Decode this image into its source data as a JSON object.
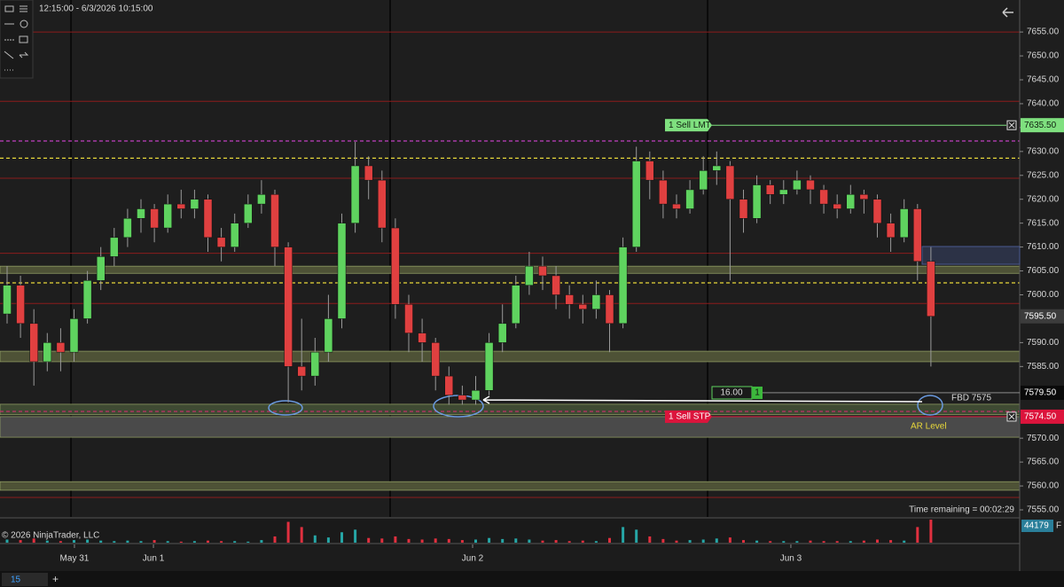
{
  "header": {
    "range": "12:15:00 - 6/3/2026 10:15:00"
  },
  "chart_data": {
    "type": "candlestick",
    "xlim": [
      -0.53,
      75.63
    ],
    "ylim": [
      7553.7,
      7661.7
    ],
    "xticks": [
      {
        "value": 5.03,
        "label": "May 31"
      },
      {
        "value": 10.93,
        "label": "Jun 1"
      },
      {
        "value": 34.77,
        "label": "Jun 2"
      },
      {
        "value": 58.54,
        "label": "Jun 3"
      }
    ],
    "session_breaks": [
      4.77,
      28.61,
      52.32
    ],
    "yticks": [
      {
        "value": 7655,
        "label": "7655.00"
      },
      {
        "value": 7650,
        "label": "7650.00"
      },
      {
        "value": 7645,
        "label": "7645.00"
      },
      {
        "value": 7640,
        "label": "7640.00"
      },
      {
        "value": 7635,
        "label": "7635.00"
      },
      {
        "value": 7630,
        "label": "7630.00"
      },
      {
        "value": 7625,
        "label": "7625.00"
      },
      {
        "value": 7620,
        "label": "7620.00"
      },
      {
        "value": 7615,
        "label": "7615.00"
      },
      {
        "value": 7610,
        "label": "7610.00"
      },
      {
        "value": 7605,
        "label": "7605.00"
      },
      {
        "value": 7600,
        "label": "7600.00"
      },
      {
        "value": 7590,
        "label": "7590.00"
      },
      {
        "value": 7585,
        "label": "7585.00"
      },
      {
        "value": 7570,
        "label": "7570.00"
      },
      {
        "value": 7565,
        "label": "7565.00"
      },
      {
        "value": 7560,
        "label": "7560.00"
      },
      {
        "value": 7555,
        "label": "7555.00"
      }
    ],
    "up_color": "#5fd35f",
    "down_color": "#e04040",
    "wick_color": "#9a9a9a",
    "candles": [
      [
        7596,
        7606,
        7594,
        7602
      ],
      [
        7602,
        7604,
        7591,
        7594
      ],
      [
        7594,
        7597,
        7581,
        7586
      ],
      [
        7586,
        7592,
        7584,
        7590
      ],
      [
        7590,
        7593,
        7584,
        7588
      ],
      [
        7588,
        7597,
        7586,
        7595
      ],
      [
        7595,
        7605,
        7594,
        7603
      ],
      [
        7603,
        7610,
        7601,
        7608
      ],
      [
        7608,
        7614,
        7606,
        7612
      ],
      [
        7612,
        7618,
        7610,
        7616
      ],
      [
        7616,
        7620,
        7613,
        7618
      ],
      [
        7618,
        7619,
        7611,
        7614
      ],
      [
        7614,
        7621,
        7613,
        7619
      ],
      [
        7619,
        7622,
        7616,
        7618
      ],
      [
        7618,
        7622,
        7616,
        7620
      ],
      [
        7620,
        7621,
        7609,
        7612
      ],
      [
        7612,
        7614,
        7607,
        7610
      ],
      [
        7610,
        7617,
        7609,
        7615
      ],
      [
        7615,
        7621,
        7614,
        7619
      ],
      [
        7619,
        7624,
        7617,
        7621
      ],
      [
        7621,
        7622,
        7606,
        7610
      ],
      [
        7610,
        7611,
        7577.5,
        7585
      ],
      [
        7585,
        7595,
        7580,
        7583
      ],
      [
        7583,
        7591,
        7581,
        7588
      ],
      [
        7588,
        7600,
        7586,
        7595
      ],
      [
        7595,
        7617,
        7593,
        7615
      ],
      [
        7615,
        7632,
        7613,
        7627
      ],
      [
        7627,
        7629,
        7620,
        7624
      ],
      [
        7624,
        7626,
        7611,
        7614
      ],
      [
        7614,
        7616,
        7595,
        7598
      ],
      [
        7598,
        7600,
        7588,
        7592
      ],
      [
        7592,
        7595,
        7586,
        7590
      ],
      [
        7590,
        7591,
        7580,
        7583
      ],
      [
        7583,
        7585,
        7577,
        7579
      ],
      [
        7579,
        7581,
        7577,
        7578
      ],
      [
        7578,
        7583,
        7577,
        7580
      ],
      [
        7580,
        7592,
        7579,
        7590
      ],
      [
        7590,
        7598,
        7588,
        7594
      ],
      [
        7594,
        7604,
        7593,
        7602
      ],
      [
        7602,
        7609,
        7600,
        7606
      ],
      [
        7606,
        7608,
        7601,
        7604
      ],
      [
        7604,
        7606,
        7597,
        7600
      ],
      [
        7600,
        7602,
        7595,
        7598
      ],
      [
        7598,
        7600,
        7594,
        7597
      ],
      [
        7597,
        7603,
        7595,
        7600
      ],
      [
        7600,
        7601,
        7588,
        7594
      ],
      [
        7594,
        7612,
        7593,
        7610
      ],
      [
        7610,
        7631,
        7609,
        7628
      ],
      [
        7628,
        7630,
        7620,
        7624
      ],
      [
        7624,
        7626,
        7616,
        7619
      ],
      [
        7619,
        7621,
        7616,
        7618
      ],
      [
        7618,
        7624,
        7617,
        7622
      ],
      [
        7622,
        7629,
        7621,
        7626
      ],
      [
        7626,
        7630,
        7623,
        7627
      ],
      [
        7627,
        7628,
        7603,
        7620
      ],
      [
        7620,
        7622,
        7613,
        7616
      ],
      [
        7616,
        7625,
        7615,
        7623
      ],
      [
        7623,
        7624,
        7619,
        7621
      ],
      [
        7621,
        7624,
        7619,
        7622
      ],
      [
        7622,
        7626,
        7621,
        7624
      ],
      [
        7624,
        7625,
        7619,
        7622
      ],
      [
        7622,
        7623,
        7617,
        7619
      ],
      [
        7619,
        7621,
        7616,
        7618
      ],
      [
        7618,
        7623,
        7617,
        7621
      ],
      [
        7621,
        7622,
        7617,
        7620
      ],
      [
        7620,
        7621,
        7612,
        7615
      ],
      [
        7615,
        7617,
        7609,
        7612
      ],
      [
        7612,
        7620,
        7611,
        7618
      ],
      [
        7618,
        7619,
        7603,
        7607
      ],
      [
        7607,
        7610,
        7585,
        7595.5
      ]
    ],
    "volume_ylim": [
      0,
      46000
    ],
    "volume": [
      6000,
      5000,
      8000,
      4000,
      3000,
      5000,
      6000,
      4000,
      3000,
      4000,
      3000,
      5000,
      3000,
      2000,
      3000,
      4000,
      3000,
      3000,
      2000,
      5000,
      12000,
      40000,
      30000,
      14000,
      10000,
      20000,
      25000,
      9000,
      8000,
      12000,
      7000,
      6000,
      8000,
      7000,
      5000,
      6000,
      9000,
      7000,
      8000,
      6000,
      4000,
      5000,
      3000,
      4000,
      3000,
      9000,
      30000,
      25000,
      12000,
      7000,
      4000,
      5000,
      6000,
      8000,
      10000,
      5000,
      4000,
      3000,
      3000,
      3000,
      4000,
      3000,
      3000,
      3000,
      4000,
      6000,
      5000,
      4000,
      30000,
      44179
    ],
    "volume_flag": "F",
    "levels": [
      {
        "price": 7655.0,
        "color": "#8b1c1c",
        "dash": false
      },
      {
        "price": 7640.5,
        "color": "#8b1c1c",
        "dash": false
      },
      {
        "price": 7632.2,
        "color": "#c040c0",
        "dash": true
      },
      {
        "price": 7628.6,
        "color": "#e8d83a",
        "dash": true
      },
      {
        "price": 7624.4,
        "color": "#8b1c1c",
        "dash": false
      },
      {
        "price": 7608.7,
        "color": "#8b1c1c",
        "dash": false
      },
      {
        "price": 7602.5,
        "color": "#e8d83a",
        "dash": true
      },
      {
        "price": 7598.2,
        "color": "#8b1c1c",
        "dash": false
      },
      {
        "price": 7575.6,
        "color": "#c0306a",
        "dash": true
      },
      {
        "price": 7557.6,
        "color": "#8b1c1c",
        "dash": false
      }
    ],
    "zones": [
      {
        "from": 7604.5,
        "to": 7606.0,
        "color": "#4e5236"
      },
      {
        "from": 7586.0,
        "to": 7588.2,
        "color": "#4e5236"
      },
      {
        "from": 7574.9,
        "to": 7577.1,
        "color": "#3f4a33"
      },
      {
        "from": 7570.2,
        "to": 7574.5,
        "color": "#4a4a4a"
      },
      {
        "from": 7559.1,
        "to": 7560.9,
        "color": "#4e5236"
      }
    ],
    "orders": [
      {
        "label": "1 Sell LMT",
        "price": {
          "value": 7635.5,
          "label": "7635.50"
        },
        "color": "#7fe07f",
        "text_color": "#102010"
      },
      {
        "label": "1 Sell STP",
        "price": {
          "value": 7574.5,
          "label": "7574.50"
        },
        "color": "#dc143c",
        "text_color": "#ffffff"
      }
    ],
    "last_price": {
      "value": 7595.5,
      "label": "7595.50"
    },
    "position": {
      "price": {
        "value": 7579.5,
        "label": "7579.50"
      },
      "pnl": "16.00",
      "qty": "1"
    },
    "annotations": {
      "fbd": "FBD 7575",
      "ar": "AR Level",
      "timer": "Time remaining = 00:02:29",
      "copyright": "© 2026 NinjaTrader, LLC"
    }
  },
  "tabs": {
    "active": "15",
    "add": "+"
  }
}
